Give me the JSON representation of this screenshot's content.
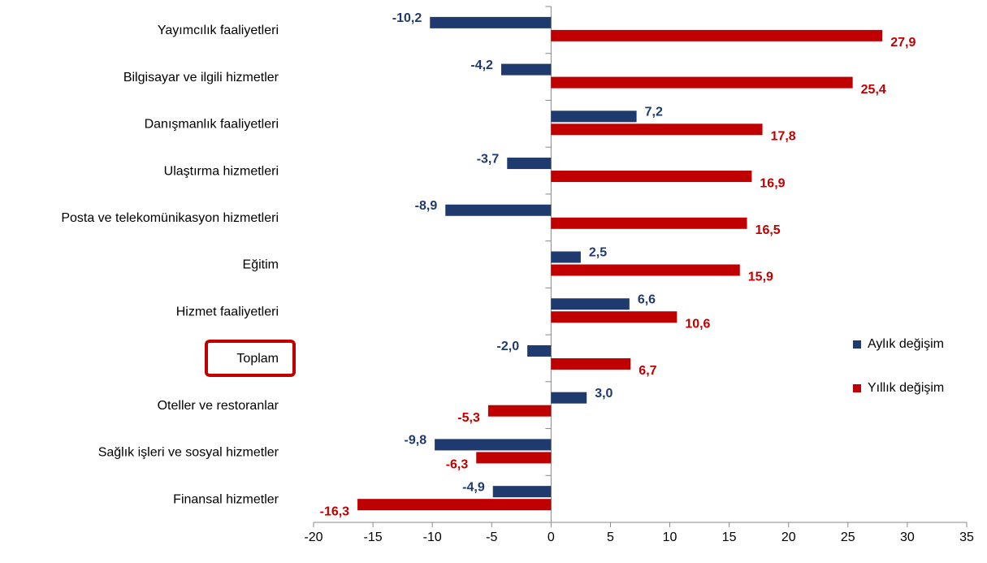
{
  "chart_data": {
    "type": "barh",
    "categories": [
      "Yayımcılık faaliyetleri",
      "Bilgisayar ve ilgili hizmetler",
      "Danışmanlık faaliyetleri",
      "Ulaştırma hizmetleri",
      "Posta ve telekomünikasyon hizmetleri",
      "Eğitim",
      "Hizmet faaliyetleri",
      "Toplam",
      "Oteller ve restoranlar",
      "Sağlık işleri ve sosyal hizmetler",
      "Finansal hizmetler"
    ],
    "series": [
      {
        "name": "Aylık değişim",
        "color": "#1f3a6e",
        "values": [
          -10.2,
          -4.2,
          7.2,
          -3.7,
          -8.9,
          2.5,
          6.6,
          -2.0,
          3.0,
          -9.8,
          -4.9
        ],
        "value_labels": [
          "-10,2",
          "-4,2",
          "7,2",
          "-3,7",
          "-8,9",
          "2,5",
          "6,6",
          "-2,0",
          "3,0",
          "-9,8",
          "-4,9"
        ]
      },
      {
        "name": "Yıllık değişim",
        "color": "#c00000",
        "values": [
          27.9,
          25.4,
          17.8,
          16.9,
          16.5,
          15.9,
          10.6,
          6.7,
          -5.3,
          -6.3,
          -16.3
        ],
        "value_labels": [
          "27,9",
          "25,4",
          "17,8",
          "16,9",
          "16,5",
          "15,9",
          "10,6",
          "6,7",
          "-5,3",
          "-6,3",
          "-16,3"
        ]
      }
    ],
    "xlim": [
      -20,
      35
    ],
    "xticks": [
      -20,
      -15,
      -10,
      -5,
      0,
      5,
      10,
      15,
      20,
      25,
      30,
      35
    ],
    "legend": "right",
    "grid": false
  }
}
